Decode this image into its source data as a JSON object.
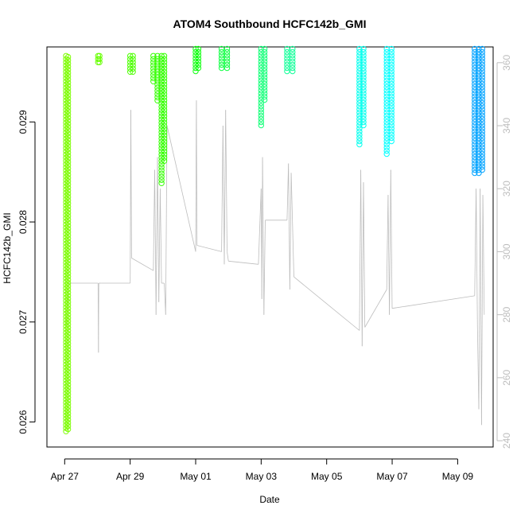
{
  "chart_data": {
    "type": "scatter",
    "title": "ATOM4 Southbound HCFC142b_GMI",
    "xlabel": "Date",
    "ylabel": "HCFC142b_GMI",
    "xlim": [
      "2016-04-26T11:00",
      "2016-05-10T02:00"
    ],
    "ylim": [
      0.02575,
      0.02975
    ],
    "y2lim": [
      238,
      365
    ],
    "x_ticks": [
      {
        "date": "2016-04-27",
        "label": "Apr 27"
      },
      {
        "date": "2016-04-29",
        "label": "Apr 29"
      },
      {
        "date": "2016-05-01",
        "label": "May 01"
      },
      {
        "date": "2016-05-03",
        "label": "May 03"
      },
      {
        "date": "2016-05-05",
        "label": "May 05"
      },
      {
        "date": "2016-05-07",
        "label": "May 07"
      },
      {
        "date": "2016-05-09",
        "label": "May 09"
      }
    ],
    "y_ticks": [
      {
        "value": 0.026,
        "label": "0.026"
      },
      {
        "value": 0.027,
        "label": "0.027"
      },
      {
        "value": 0.028,
        "label": "0.028"
      },
      {
        "value": 0.029,
        "label": "0.029"
      }
    ],
    "y2_ticks": [
      {
        "value": 240,
        "label": "240"
      },
      {
        "value": 260,
        "label": "260"
      },
      {
        "value": 280,
        "label": "280"
      },
      {
        "value": 300,
        "label": "300"
      },
      {
        "value": 320,
        "label": "320"
      },
      {
        "value": 340,
        "label": "340"
      },
      {
        "value": 360,
        "label": "360"
      }
    ],
    "grid": false,
    "legend": "none",
    "colors": {
      "secondary_line": "#bdbdbd",
      "axis": "#000000",
      "right_axis": "#bdbdbd"
    },
    "series": [
      {
        "color": "#7CFC00",
        "points": [
          {
            "x": "2016-04-27T01:00",
            "y_min": 0.02588,
            "y_max": 0.02966
          },
          {
            "x": "2016-04-27T02:30",
            "y_min": 0.0259,
            "y_max": 0.02965
          }
        ]
      },
      {
        "color": "#66FF00",
        "points": [
          {
            "x": "2016-04-28T00:30",
            "y_min": 0.02958,
            "y_max": 0.02966
          },
          {
            "x": "2016-04-28T01:30",
            "y_min": 0.02958,
            "y_max": 0.02966
          }
        ]
      },
      {
        "color": "#4CFF00",
        "points": [
          {
            "x": "2016-04-29T00:00",
            "y_min": 0.02948,
            "y_max": 0.02966
          },
          {
            "x": "2016-04-29T02:00",
            "y_min": 0.0295,
            "y_max": 0.02966
          }
        ]
      },
      {
        "color": "#33FF00",
        "points": [
          {
            "x": "2016-04-29T17:00",
            "y_min": 0.0294,
            "y_max": 0.02966
          },
          {
            "x": "2016-04-29T20:00",
            "y_min": 0.0292,
            "y_max": 0.02966
          },
          {
            "x": "2016-04-29T23:00",
            "y_min": 0.02838,
            "y_max": 0.02966
          },
          {
            "x": "2016-04-30T01:00",
            "y_min": 0.0286,
            "y_max": 0.02966
          }
        ]
      },
      {
        "color": "#11FF11",
        "points": [
          {
            "x": "2016-05-01T00:00",
            "y_min": 0.0295,
            "y_max": 0.02973
          },
          {
            "x": "2016-05-01T02:00",
            "y_min": 0.02952,
            "y_max": 0.02973
          }
        ]
      },
      {
        "color": "#11FF44",
        "points": [
          {
            "x": "2016-05-01T19:00",
            "y_min": 0.02952,
            "y_max": 0.02973
          },
          {
            "x": "2016-05-01T23:00",
            "y_min": 0.02952,
            "y_max": 0.02973
          }
        ]
      },
      {
        "color": "#11FF77",
        "points": [
          {
            "x": "2016-05-03T00:00",
            "y_min": 0.02895,
            "y_max": 0.02973
          },
          {
            "x": "2016-05-03T02:30",
            "y_min": 0.0292,
            "y_max": 0.02973
          }
        ]
      },
      {
        "color": "#11FF99",
        "points": [
          {
            "x": "2016-05-03T19:00",
            "y_min": 0.02948,
            "y_max": 0.02973
          },
          {
            "x": "2016-05-03T23:00",
            "y_min": 0.02948,
            "y_max": 0.02973
          }
        ]
      },
      {
        "color": "#00FFEE",
        "points": [
          {
            "x": "2016-05-06T00:00",
            "y_min": 0.02875,
            "y_max": 0.02973
          },
          {
            "x": "2016-05-06T03:00",
            "y_min": 0.02895,
            "y_max": 0.02973
          }
        ]
      },
      {
        "color": "#00FFFF",
        "points": [
          {
            "x": "2016-05-06T20:00",
            "y_min": 0.02867,
            "y_max": 0.02973
          },
          {
            "x": "2016-05-06T23:30",
            "y_min": 0.0288,
            "y_max": 0.02973
          }
        ]
      },
      {
        "color": "#00A2FF",
        "points": [
          {
            "x": "2016-05-09T12:30",
            "y_min": 0.02846,
            "y_max": 0.02973
          },
          {
            "x": "2016-05-09T15:30",
            "y_min": 0.02846,
            "y_max": 0.02973
          },
          {
            "x": "2016-05-09T18:00",
            "y_min": 0.0285,
            "y_max": 0.02973
          }
        ]
      }
    ],
    "secondary_series": {
      "color": "#bdbdbd",
      "points": [
        [
          "2016-04-27T01:00",
          276
        ],
        [
          "2016-04-27T03:00",
          290
        ],
        [
          "2016-04-28T00:30",
          290
        ],
        [
          "2016-04-28T00:45",
          268
        ],
        [
          "2016-04-28T01:00",
          290
        ],
        [
          "2016-04-28T03:00",
          290
        ],
        [
          "2016-04-29T00:00",
          290
        ],
        [
          "2016-04-29T00:30",
          345
        ],
        [
          "2016-04-29T01:00",
          298
        ],
        [
          "2016-04-29T17:00",
          294
        ],
        [
          "2016-04-29T18:00",
          326
        ],
        [
          "2016-04-29T19:00",
          280
        ],
        [
          "2016-04-29T20:00",
          330
        ],
        [
          "2016-04-29T21:00",
          284
        ],
        [
          "2016-04-29T22:00",
          320
        ],
        [
          "2016-04-29T23:00",
          290
        ],
        [
          "2016-04-30T01:00",
          290
        ],
        [
          "2016-04-30T02:00",
          280
        ],
        [
          "2016-04-30T03:00",
          340
        ],
        [
          "2016-05-01T00:00",
          300
        ],
        [
          "2016-05-01T00:30",
          348
        ],
        [
          "2016-05-01T01:00",
          302
        ],
        [
          "2016-05-01T19:00",
          300
        ],
        [
          "2016-05-01T20:00",
          340
        ],
        [
          "2016-05-01T21:00",
          296
        ],
        [
          "2016-05-01T22:00",
          345
        ],
        [
          "2016-05-01T23:00",
          300
        ],
        [
          "2016-05-02T00:00",
          297
        ],
        [
          "2016-05-02T22:00",
          296
        ],
        [
          "2016-05-03T00:00",
          320
        ],
        [
          "2016-05-03T00:30",
          285
        ],
        [
          "2016-05-03T01:00",
          330
        ],
        [
          "2016-05-03T02:00",
          280
        ],
        [
          "2016-05-03T03:00",
          310
        ],
        [
          "2016-05-03T19:00",
          310
        ],
        [
          "2016-05-03T20:00",
          328
        ],
        [
          "2016-05-03T21:00",
          288
        ],
        [
          "2016-05-03T22:00",
          325
        ],
        [
          "2016-05-04T00:00",
          292
        ],
        [
          "2016-05-06T00:00",
          275
        ],
        [
          "2016-05-06T01:00",
          326
        ],
        [
          "2016-05-06T02:00",
          270
        ],
        [
          "2016-05-06T03:00",
          322
        ],
        [
          "2016-05-06T04:00",
          276
        ],
        [
          "2016-05-06T20:00",
          288
        ],
        [
          "2016-05-06T21:00",
          318
        ],
        [
          "2016-05-06T22:00",
          280
        ],
        [
          "2016-05-06T23:00",
          326
        ],
        [
          "2016-05-07T00:00",
          282
        ],
        [
          "2016-05-09T12:30",
          286
        ],
        [
          "2016-05-09T13:30",
          320
        ],
        [
          "2016-05-09T14:30",
          276
        ],
        [
          "2016-05-09T15:30",
          250
        ],
        [
          "2016-05-09T16:30",
          320
        ],
        [
          "2016-05-09T17:30",
          245
        ],
        [
          "2016-05-09T18:30",
          318
        ],
        [
          "2016-05-09T19:30",
          280
        ]
      ]
    }
  }
}
